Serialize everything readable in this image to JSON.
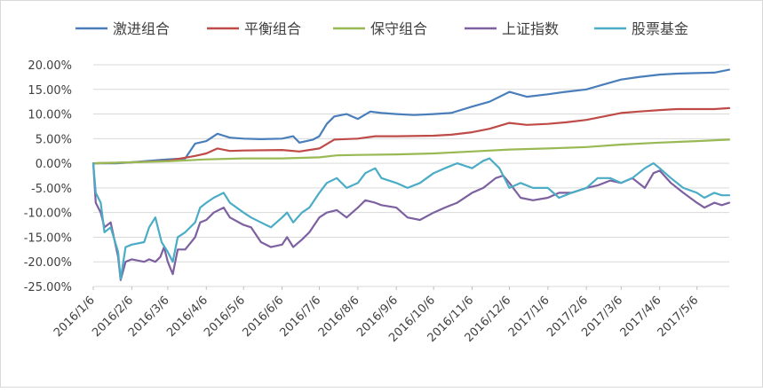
{
  "chart_data": {
    "type": "line",
    "legend_position": "top",
    "grid": true,
    "ylim": [
      -0.25,
      0.2
    ],
    "y_tick_values": [
      0.2,
      0.15,
      0.1,
      0.05,
      0.0,
      -0.05,
      -0.1,
      -0.15,
      -0.2,
      -0.25
    ],
    "y_tick_labels": [
      "20.00%",
      "15.00%",
      "10.00%",
      "5.00%",
      "0.00%",
      "-5.00%",
      "-10.00%",
      "-15.00%",
      "-20.00%",
      "-25.00%"
    ],
    "x_tick_labels": [
      "2016/1/6",
      "2016/2/6",
      "2016/3/6",
      "2016/4/6",
      "2016/5/6",
      "2016/6/6",
      "2016/7/6",
      "2016/8/6",
      "2016/9/6",
      "2016/10/6",
      "2016/11/6",
      "2016/12/6",
      "2017/1/6",
      "2017/2/6",
      "2017/3/6",
      "2017/4/6",
      "2017/5/6"
    ],
    "x_range": [
      "2016/1/6",
      "2017/6/1"
    ],
    "series": [
      {
        "name": "激进组合",
        "color": "#4a7ebb",
        "points": [
          [
            "2016/1/6",
            0.0
          ],
          [
            "2016/1/25",
            0.0
          ],
          [
            "2016/2/6",
            0.002
          ],
          [
            "2016/2/20",
            0.005
          ],
          [
            "2016/3/6",
            0.008
          ],
          [
            "2016/3/20",
            0.01
          ],
          [
            "2016/3/28",
            0.04
          ],
          [
            "2016/4/6",
            0.045
          ],
          [
            "2016/4/15",
            0.06
          ],
          [
            "2016/4/25",
            0.052
          ],
          [
            "2016/5/6",
            0.05
          ],
          [
            "2016/5/20",
            0.049
          ],
          [
            "2016/6/6",
            0.05
          ],
          [
            "2016/6/15",
            0.055
          ],
          [
            "2016/6/20",
            0.042
          ],
          [
            "2016/7/1",
            0.048
          ],
          [
            "2016/7/6",
            0.055
          ],
          [
            "2016/7/12",
            0.08
          ],
          [
            "2016/7/18",
            0.095
          ],
          [
            "2016/7/28",
            0.1
          ],
          [
            "2016/8/6",
            0.09
          ],
          [
            "2016/8/16",
            0.105
          ],
          [
            "2016/8/25",
            0.102
          ],
          [
            "2016/9/6",
            0.1
          ],
          [
            "2016/9/20",
            0.098
          ],
          [
            "2016/10/6",
            0.1
          ],
          [
            "2016/10/20",
            0.102
          ],
          [
            "2016/11/6",
            0.115
          ],
          [
            "2016/11/20",
            0.125
          ],
          [
            "2016/12/6",
            0.145
          ],
          [
            "2016/12/20",
            0.135
          ],
          [
            "2017/1/6",
            0.14
          ],
          [
            "2017/1/20",
            0.145
          ],
          [
            "2017/2/6",
            0.15
          ],
          [
            "2017/2/20",
            0.16
          ],
          [
            "2017/3/6",
            0.17
          ],
          [
            "2017/3/20",
            0.175
          ],
          [
            "2017/4/6",
            0.18
          ],
          [
            "2017/4/20",
            0.182
          ],
          [
            "2017/5/6",
            0.183
          ],
          [
            "2017/5/20",
            0.184
          ],
          [
            "2017/6/1",
            0.19
          ]
        ]
      },
      {
        "name": "平衡组合",
        "color": "#be4b48",
        "points": [
          [
            "2016/1/6",
            0.0
          ],
          [
            "2016/2/6",
            0.002
          ],
          [
            "2016/3/6",
            0.005
          ],
          [
            "2016/3/28",
            0.015
          ],
          [
            "2016/4/6",
            0.02
          ],
          [
            "2016/4/15",
            0.03
          ],
          [
            "2016/4/25",
            0.025
          ],
          [
            "2016/5/6",
            0.026
          ],
          [
            "2016/6/6",
            0.027
          ],
          [
            "2016/6/20",
            0.024
          ],
          [
            "2016/7/6",
            0.03
          ],
          [
            "2016/7/18",
            0.048
          ],
          [
            "2016/8/6",
            0.05
          ],
          [
            "2016/8/20",
            0.055
          ],
          [
            "2016/9/6",
            0.055
          ],
          [
            "2016/10/6",
            0.056
          ],
          [
            "2016/10/20",
            0.058
          ],
          [
            "2016/11/6",
            0.063
          ],
          [
            "2016/11/20",
            0.07
          ],
          [
            "2016/12/6",
            0.082
          ],
          [
            "2016/12/20",
            0.078
          ],
          [
            "2017/1/6",
            0.08
          ],
          [
            "2017/1/20",
            0.083
          ],
          [
            "2017/2/6",
            0.088
          ],
          [
            "2017/2/20",
            0.095
          ],
          [
            "2017/3/6",
            0.102
          ],
          [
            "2017/3/20",
            0.105
          ],
          [
            "2017/4/6",
            0.108
          ],
          [
            "2017/4/20",
            0.11
          ],
          [
            "2017/5/6",
            0.11
          ],
          [
            "2017/5/20",
            0.11
          ],
          [
            "2017/6/1",
            0.112
          ]
        ]
      },
      {
        "name": "保守组合",
        "color": "#98b954",
        "points": [
          [
            "2016/1/6",
            0.0
          ],
          [
            "2016/2/6",
            0.002
          ],
          [
            "2016/3/6",
            0.004
          ],
          [
            "2016/4/6",
            0.008
          ],
          [
            "2016/5/6",
            0.01
          ],
          [
            "2016/6/6",
            0.01
          ],
          [
            "2016/7/6",
            0.012
          ],
          [
            "2016/7/20",
            0.016
          ],
          [
            "2016/8/6",
            0.017
          ],
          [
            "2016/9/6",
            0.018
          ],
          [
            "2016/10/6",
            0.02
          ],
          [
            "2016/11/6",
            0.024
          ],
          [
            "2016/12/6",
            0.028
          ],
          [
            "2017/1/6",
            0.03
          ],
          [
            "2017/2/6",
            0.033
          ],
          [
            "2017/3/6",
            0.038
          ],
          [
            "2017/4/6",
            0.042
          ],
          [
            "2017/5/6",
            0.045
          ],
          [
            "2017/6/1",
            0.048
          ]
        ]
      },
      {
        "name": "上证指数",
        "color": "#7d60a0",
        "points": [
          [
            "2016/1/6",
            0.0
          ],
          [
            "2016/1/8",
            -0.08
          ],
          [
            "2016/1/12",
            -0.1
          ],
          [
            "2016/1/15",
            -0.13
          ],
          [
            "2016/1/20",
            -0.12
          ],
          [
            "2016/1/26",
            -0.19
          ],
          [
            "2016/1/28",
            -0.237
          ],
          [
            "2016/2/1",
            -0.2
          ],
          [
            "2016/2/6",
            -0.195
          ],
          [
            "2016/2/16",
            -0.2
          ],
          [
            "2016/2/20",
            -0.195
          ],
          [
            "2016/2/25",
            -0.2
          ],
          [
            "2016/2/29",
            -0.19
          ],
          [
            "2016/3/3",
            -0.17
          ],
          [
            "2016/3/6",
            -0.2
          ],
          [
            "2016/3/10",
            -0.225
          ],
          [
            "2016/3/14",
            -0.175
          ],
          [
            "2016/3/20",
            -0.175
          ],
          [
            "2016/3/28",
            -0.15
          ],
          [
            "2016/4/1",
            -0.12
          ],
          [
            "2016/4/6",
            -0.115
          ],
          [
            "2016/4/12",
            -0.1
          ],
          [
            "2016/4/20",
            -0.09
          ],
          [
            "2016/4/25",
            -0.11
          ],
          [
            "2016/5/6",
            -0.125
          ],
          [
            "2016/5/12",
            -0.13
          ],
          [
            "2016/5/20",
            -0.16
          ],
          [
            "2016/5/28",
            -0.17
          ],
          [
            "2016/6/6",
            -0.165
          ],
          [
            "2016/6/10",
            -0.15
          ],
          [
            "2016/6/15",
            -0.17
          ],
          [
            "2016/6/22",
            -0.155
          ],
          [
            "2016/6/28",
            -0.14
          ],
          [
            "2016/7/6",
            -0.11
          ],
          [
            "2016/7/12",
            -0.1
          ],
          [
            "2016/7/20",
            -0.095
          ],
          [
            "2016/7/28",
            -0.11
          ],
          [
            "2016/8/6",
            -0.09
          ],
          [
            "2016/8/12",
            -0.075
          ],
          [
            "2016/8/20",
            -0.08
          ],
          [
            "2016/8/25",
            -0.085
          ],
          [
            "2016/9/6",
            -0.09
          ],
          [
            "2016/9/15",
            -0.11
          ],
          [
            "2016/9/25",
            -0.115
          ],
          [
            "2016/10/6",
            -0.1
          ],
          [
            "2016/10/15",
            -0.09
          ],
          [
            "2016/10/25",
            -0.08
          ],
          [
            "2016/11/6",
            -0.06
          ],
          [
            "2016/11/15",
            -0.05
          ],
          [
            "2016/11/25",
            -0.03
          ],
          [
            "2016/12/1",
            -0.025
          ],
          [
            "2016/12/6",
            -0.04
          ],
          [
            "2016/12/15",
            -0.07
          ],
          [
            "2016/12/25",
            -0.075
          ],
          [
            "2017/1/6",
            -0.07
          ],
          [
            "2017/1/15",
            -0.06
          ],
          [
            "2017/1/25",
            -0.06
          ],
          [
            "2017/2/6",
            -0.05
          ],
          [
            "2017/2/15",
            -0.045
          ],
          [
            "2017/2/25",
            -0.035
          ],
          [
            "2017/3/6",
            -0.04
          ],
          [
            "2017/3/15",
            -0.03
          ],
          [
            "2017/3/25",
            -0.05
          ],
          [
            "2017/4/1",
            -0.02
          ],
          [
            "2017/4/6",
            -0.015
          ],
          [
            "2017/4/15",
            -0.04
          ],
          [
            "2017/4/25",
            -0.06
          ],
          [
            "2017/5/6",
            -0.08
          ],
          [
            "2017/5/12",
            -0.09
          ],
          [
            "2017/5/20",
            -0.08
          ],
          [
            "2017/5/26",
            -0.085
          ],
          [
            "2017/6/1",
            -0.08
          ]
        ]
      },
      {
        "name": "股票基金",
        "color": "#4bacc6",
        "points": [
          [
            "2016/1/6",
            0.0
          ],
          [
            "2016/1/8",
            -0.06
          ],
          [
            "2016/1/12",
            -0.08
          ],
          [
            "2016/1/15",
            -0.14
          ],
          [
            "2016/1/20",
            -0.13
          ],
          [
            "2016/1/26",
            -0.18
          ],
          [
            "2016/1/28",
            -0.235
          ],
          [
            "2016/2/1",
            -0.17
          ],
          [
            "2016/2/6",
            -0.165
          ],
          [
            "2016/2/16",
            -0.16
          ],
          [
            "2016/2/20",
            -0.13
          ],
          [
            "2016/2/25",
            -0.11
          ],
          [
            "2016/3/1",
            -0.16
          ],
          [
            "2016/3/6",
            -0.18
          ],
          [
            "2016/3/10",
            -0.2
          ],
          [
            "2016/3/14",
            -0.15
          ],
          [
            "2016/3/20",
            -0.14
          ],
          [
            "2016/3/28",
            -0.12
          ],
          [
            "2016/4/1",
            -0.09
          ],
          [
            "2016/4/6",
            -0.08
          ],
          [
            "2016/4/12",
            -0.07
          ],
          [
            "2016/4/20",
            -0.06
          ],
          [
            "2016/4/25",
            -0.08
          ],
          [
            "2016/5/6",
            -0.1
          ],
          [
            "2016/5/12",
            -0.11
          ],
          [
            "2016/5/20",
            -0.12
          ],
          [
            "2016/5/28",
            -0.13
          ],
          [
            "2016/6/6",
            -0.11
          ],
          [
            "2016/6/10",
            -0.1
          ],
          [
            "2016/6/15",
            -0.12
          ],
          [
            "2016/6/22",
            -0.1
          ],
          [
            "2016/6/28",
            -0.09
          ],
          [
            "2016/7/6",
            -0.06
          ],
          [
            "2016/7/12",
            -0.04
          ],
          [
            "2016/7/20",
            -0.03
          ],
          [
            "2016/7/28",
            -0.05
          ],
          [
            "2016/8/6",
            -0.04
          ],
          [
            "2016/8/12",
            -0.02
          ],
          [
            "2016/8/20",
            -0.01
          ],
          [
            "2016/8/25",
            -0.03
          ],
          [
            "2016/9/6",
            -0.04
          ],
          [
            "2016/9/15",
            -0.05
          ],
          [
            "2016/9/25",
            -0.04
          ],
          [
            "2016/10/6",
            -0.02
          ],
          [
            "2016/10/15",
            -0.01
          ],
          [
            "2016/10/25",
            0.0
          ],
          [
            "2016/11/6",
            -0.01
          ],
          [
            "2016/11/15",
            0.005
          ],
          [
            "2016/11/20",
            0.01
          ],
          [
            "2016/11/28",
            -0.01
          ],
          [
            "2016/12/6",
            -0.05
          ],
          [
            "2016/12/15",
            -0.04
          ],
          [
            "2016/12/25",
            -0.05
          ],
          [
            "2017/1/6",
            -0.05
          ],
          [
            "2017/1/15",
            -0.07
          ],
          [
            "2017/1/25",
            -0.06
          ],
          [
            "2017/2/6",
            -0.05
          ],
          [
            "2017/2/15",
            -0.03
          ],
          [
            "2017/2/25",
            -0.03
          ],
          [
            "2017/3/6",
            -0.04
          ],
          [
            "2017/3/15",
            -0.03
          ],
          [
            "2017/3/25",
            -0.01
          ],
          [
            "2017/4/1",
            0.0
          ],
          [
            "2017/4/6",
            -0.01
          ],
          [
            "2017/4/15",
            -0.03
          ],
          [
            "2017/4/25",
            -0.05
          ],
          [
            "2017/5/6",
            -0.06
          ],
          [
            "2017/5/12",
            -0.07
          ],
          [
            "2017/5/20",
            -0.06
          ],
          [
            "2017/5/26",
            -0.065
          ],
          [
            "2017/6/1",
            -0.065
          ]
        ]
      }
    ]
  }
}
